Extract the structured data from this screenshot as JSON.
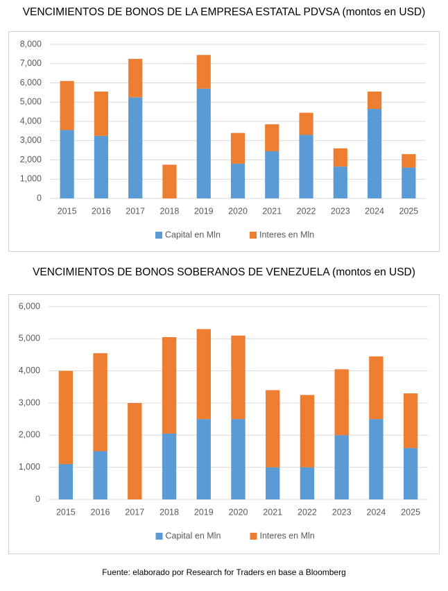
{
  "chart_data": [
    {
      "type": "bar",
      "stacked": true,
      "title": "VENCIMIENTOS DE BONOS DE LA EMPRESA ESTATAL PDVSA (montos en USD)",
      "categories": [
        "2015",
        "2016",
        "2017",
        "2018",
        "2019",
        "2020",
        "2021",
        "2022",
        "2023",
        "2024",
        "2025"
      ],
      "series": [
        {
          "name": "Capital en Mln",
          "color": "#5b9bd5",
          "values": [
            3550,
            3250,
            5250,
            0,
            5700,
            1800,
            2450,
            3300,
            1650,
            4650,
            1600
          ]
        },
        {
          "name": "Interes en Mln",
          "color": "#ed7d31",
          "values": [
            2550,
            2300,
            2000,
            1750,
            1750,
            1600,
            1400,
            1150,
            950,
            900,
            700
          ]
        }
      ],
      "ylim": [
        0,
        8000
      ],
      "yticks": [
        0,
        {
          "value": 1000,
          "label": "1,000"
        },
        {
          "value": 2000,
          "label": "2,000"
        },
        {
          "value": 3000,
          "label": "3,000"
        },
        {
          "value": 4000,
          "label": "4,000"
        },
        {
          "value": 5000,
          "label": "5,000"
        },
        {
          "value": 6000,
          "label": "6,000"
        },
        {
          "value": 7000,
          "label": "7,000"
        },
        {
          "value": 8000,
          "label": "8,000"
        }
      ],
      "grid": true,
      "legend": "bottom"
    },
    {
      "type": "bar",
      "stacked": true,
      "title": "VENCIMIENTOS DE BONOS SOBERANOS DE VENEZUELA (montos en USD)",
      "categories": [
        "2015",
        "2016",
        "2017",
        "2018",
        "2019",
        "2020",
        "2021",
        "2022",
        "2023",
        "2024",
        "2025"
      ],
      "series": [
        {
          "name": "Capital en Mln",
          "color": "#5b9bd5",
          "values": [
            1100,
            1500,
            0,
            2050,
            2500,
            2500,
            1000,
            1000,
            2000,
            2500,
            1600
          ]
        },
        {
          "name": "Interes en Mln",
          "color": "#ed7d31",
          "values": [
            2900,
            3050,
            3000,
            3000,
            2800,
            2600,
            2400,
            2250,
            2050,
            1950,
            1700
          ]
        }
      ],
      "ylim": [
        0,
        6000
      ],
      "yticks": [
        0,
        {
          "value": 1000,
          "label": "1,000"
        },
        {
          "value": 2000,
          "label": "2,000"
        },
        {
          "value": 3000,
          "label": "3,000"
        },
        {
          "value": 4000,
          "label": "4,000"
        },
        {
          "value": 5000,
          "label": "5,000"
        },
        {
          "value": 6000,
          "label": "6,000"
        }
      ],
      "grid": true,
      "legend": "bottom"
    }
  ],
  "source": "Fuente: elaborado por Research for Traders en base a Bloomberg"
}
